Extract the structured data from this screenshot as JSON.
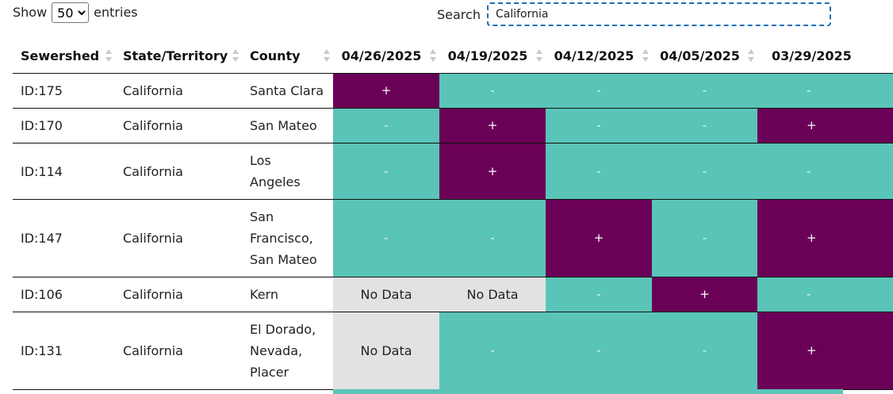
{
  "controls": {
    "show_label": "Show",
    "entries_label": "entries",
    "page_size": "50",
    "search_label": "Search",
    "search_value": "California"
  },
  "table": {
    "headers": [
      "Sewershed",
      "State/Territory",
      "County",
      "04/26/2025",
      "04/19/2025",
      "04/12/2025",
      "04/05/2025",
      "03/29/2025"
    ],
    "rows": [
      {
        "sewershed": "ID:175",
        "state": "California",
        "county": "Santa Clara",
        "results": [
          "+",
          "-",
          "-",
          "-",
          "-"
        ]
      },
      {
        "sewershed": "ID:170",
        "state": "California",
        "county": "San Mateo",
        "results": [
          "-",
          "+",
          "-",
          "-",
          "+"
        ]
      },
      {
        "sewershed": "ID:114",
        "state": "California",
        "county": "Los Angeles",
        "results": [
          "-",
          "+",
          "-",
          "-",
          "-"
        ]
      },
      {
        "sewershed": "ID:147",
        "state": "California",
        "county": "San Francisco, San Mateo",
        "results": [
          "-",
          "-",
          "+",
          "-",
          "+"
        ]
      },
      {
        "sewershed": "ID:106",
        "state": "California",
        "county": "Kern",
        "results": [
          "No Data",
          "No Data",
          "-",
          "+",
          "-"
        ]
      },
      {
        "sewershed": "ID:131",
        "state": "California",
        "county": "El Dorado, Nevada, Placer",
        "results": [
          "No Data",
          "-",
          "-",
          "-",
          "+"
        ]
      }
    ]
  },
  "colors": {
    "positive": "#6a0157",
    "negative": "#5ac4b9",
    "no_data": "#e2e2e2"
  }
}
